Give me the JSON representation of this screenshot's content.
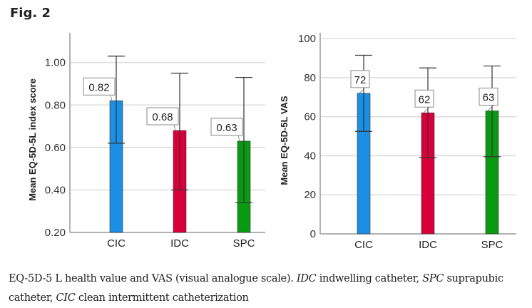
{
  "figure": {
    "title": "Fig. 2",
    "caption": {
      "parts": [
        {
          "text": "EQ-5D-5 L health value and VAS (visual analogue scale). ",
          "italic": false
        },
        {
          "text": "IDC",
          "italic": true
        },
        {
          "text": " indwelling catheter, ",
          "italic": false
        },
        {
          "text": "SPC",
          "italic": true
        },
        {
          "text": " suprapubic catheter, ",
          "italic": false
        },
        {
          "text": "CIC",
          "italic": true
        },
        {
          "text": " clean intermittent catheterization",
          "italic": false
        }
      ]
    }
  },
  "chart_data": [
    {
      "type": "bar",
      "title": "",
      "xlabel": "",
      "ylabel": "Mean EQ-5D-5L index score",
      "categories": [
        "CIC",
        "IDC",
        "SPC"
      ],
      "values": [
        0.82,
        0.68,
        0.63
      ],
      "data_labels": [
        "0.82",
        "0.68",
        "0.63"
      ],
      "error_bars": [
        {
          "low": 0.62,
          "high": 1.03
        },
        {
          "low": 0.4,
          "high": 0.95
        },
        {
          "low": 0.34,
          "high": 0.93
        }
      ],
      "colors": [
        "#1a8fe3",
        "#d8003a",
        "#0a9a12"
      ],
      "ylim": [
        0.2,
        1.14
      ],
      "yticks": [
        0.2,
        0.4,
        0.6,
        0.8,
        1.0
      ],
      "ytick_labels": [
        "0.20",
        "0.40",
        "0.60",
        "0.80",
        "1.00"
      ],
      "grid": true,
      "legend": "none"
    },
    {
      "type": "bar",
      "title": "",
      "xlabel": "",
      "ylabel": "Mean EQ-5D-5L VAS",
      "categories": [
        "CIC",
        "IDC",
        "SPC"
      ],
      "values": [
        72,
        62,
        63
      ],
      "data_labels": [
        "72",
        "62",
        "63"
      ],
      "error_bars": [
        {
          "low": 52.5,
          "high": 91.5
        },
        {
          "low": 39,
          "high": 85
        },
        {
          "low": 39.5,
          "high": 86
        }
      ],
      "colors": [
        "#1a8fe3",
        "#d8003a",
        "#0a9a12"
      ],
      "ylim": [
        0,
        103
      ],
      "yticks": [
        0,
        20,
        40,
        60,
        80,
        100
      ],
      "ytick_labels": [
        "0",
        "20",
        "40",
        "60",
        "80",
        "100"
      ],
      "grid": true,
      "legend": "none"
    }
  ]
}
